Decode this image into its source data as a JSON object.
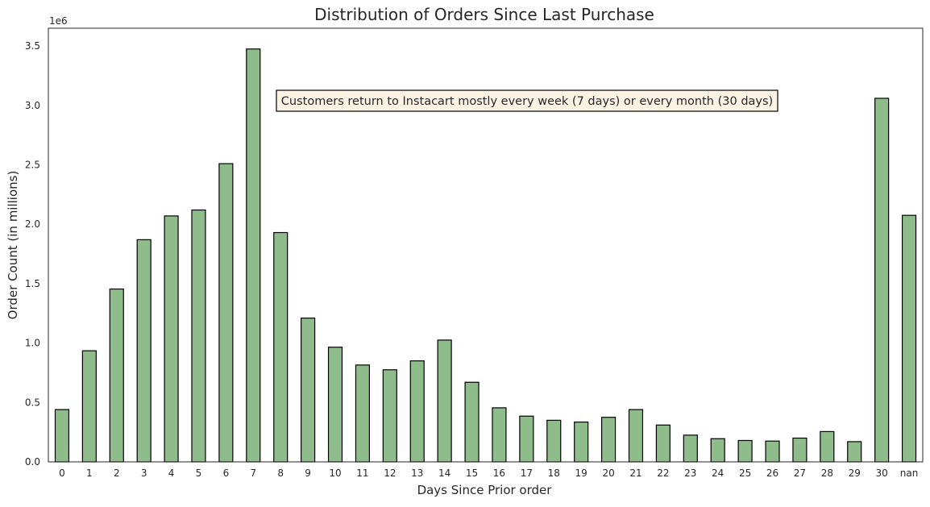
{
  "chart_data": {
    "type": "bar",
    "title": "Distribution of Orders Since Last Purchase",
    "xlabel": "Days Since Prior order",
    "ylabel": "Order Count (in millions)",
    "offset_label": "1e6",
    "categories": [
      "0",
      "1",
      "2",
      "3",
      "4",
      "5",
      "6",
      "7",
      "8",
      "9",
      "10",
      "11",
      "12",
      "13",
      "14",
      "15",
      "16",
      "17",
      "18",
      "19",
      "20",
      "21",
      "22",
      "23",
      "24",
      "25",
      "26",
      "27",
      "28",
      "29",
      "30",
      "nan"
    ],
    "values": [
      440000,
      935000,
      1455000,
      1870000,
      2070000,
      2120000,
      2510000,
      3475000,
      1930000,
      1210000,
      965000,
      815000,
      775000,
      850000,
      1025000,
      670000,
      455000,
      385000,
      350000,
      335000,
      375000,
      440000,
      310000,
      225000,
      195000,
      180000,
      175000,
      200000,
      255000,
      170000,
      3060000,
      2075000
    ],
    "y_ticks": [
      "0.0",
      "0.5",
      "1.0",
      "1.5",
      "2.0",
      "2.5",
      "3.0",
      "3.5"
    ],
    "ylim": [
      0,
      3650000
    ],
    "bar_color": "#8fbc8b",
    "edge_color": "#000000",
    "annotation": "Customers return to Instacart mostly every week (7 days) or every month (30 days)",
    "annotation_bg": "#fdf3e4",
    "grid": false
  }
}
